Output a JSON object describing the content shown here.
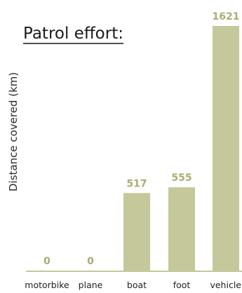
{
  "chart_data": {
    "type": "bar",
    "title": "Patrol effort:",
    "xlabel": "",
    "ylabel": "Distance covered (km)",
    "categories": [
      "motorbike",
      "plane",
      "boat",
      "foot",
      "vehicle"
    ],
    "values": [
      0,
      0,
      517,
      555,
      1621
    ],
    "value_labels": [
      "0",
      "0",
      "517",
      "555",
      "1621"
    ],
    "ylim": [
      0,
      1621
    ],
    "grid": false,
    "legend": "none"
  },
  "colors": {
    "bar": "#c5c89a",
    "value_label": "#a9ad72",
    "baseline": "#c5c89a"
  }
}
